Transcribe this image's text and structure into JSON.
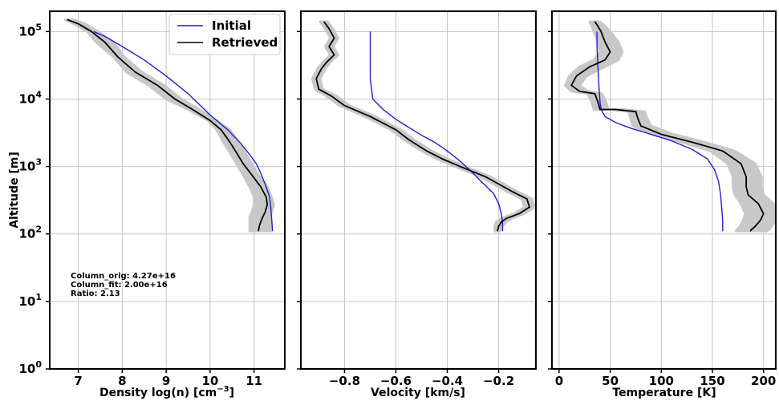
{
  "chart_data": [
    {
      "type": "line",
      "panel": "density",
      "xlabel": "Density log(n) [cm",
      "xlabel_sup": "−3",
      "xlabel_end": "]",
      "ylabel": "Altitude [m]",
      "xlim": [
        6.35,
        11.7
      ],
      "ylim": [
        1,
        200000
      ],
      "yscale": "log",
      "grid": true,
      "xticks": [
        7,
        8,
        9,
        10,
        11
      ],
      "xtick_labels": [
        "7",
        "8",
        "9",
        "10",
        "11"
      ],
      "ytick_exponents": [
        0,
        1,
        2,
        3,
        4,
        5
      ],
      "ytick_base": "10",
      "legend": {
        "placement": "top-right",
        "entries": [
          {
            "label": "Initial",
            "color": "#1f1fd6"
          },
          {
            "label": "Retrieved",
            "color": "#000000"
          }
        ]
      },
      "annotations": [
        "Column_orig: 4.27e+16",
        "Column_fit: 2.00e+16",
        "Ratio: 2.13"
      ],
      "series": [
        {
          "name": "Initial",
          "color": "#1f1fd6",
          "x": [
            7.35,
            7.6,
            8.0,
            8.5,
            9.0,
            9.5,
            10.0,
            10.4,
            10.7,
            10.9,
            11.05,
            11.15,
            11.25,
            11.35,
            11.38,
            11.4,
            11.42
          ],
          "y": [
            100000,
            85000,
            60000,
            38000,
            22000,
            12000,
            5800,
            3500,
            2200,
            1500,
            1100,
            800,
            550,
            360,
            250,
            170,
            110
          ]
        },
        {
          "name": "Retrieved",
          "color": "#000000",
          "x": [
            6.75,
            7.0,
            7.3,
            7.6,
            7.9,
            8.3,
            8.8,
            9.2,
            9.6,
            10.0,
            10.25,
            10.45,
            10.6,
            10.75,
            10.95,
            11.15,
            11.28,
            11.3,
            11.25,
            11.2,
            11.15,
            11.12,
            11.1
          ],
          "y": [
            150000,
            130000,
            100000,
            70000,
            42000,
            25000,
            16000,
            10000,
            7000,
            4800,
            3500,
            2300,
            1600,
            1100,
            750,
            500,
            350,
            270,
            210,
            180,
            150,
            130,
            110
          ]
        },
        {
          "name": "Retrieved-band",
          "color": "#c8c8c8",
          "x_lo": [
            6.7,
            6.9,
            7.2,
            7.4,
            7.8,
            8.1,
            8.6,
            9.0,
            9.5,
            9.95,
            10.15,
            10.3,
            10.45,
            10.6,
            10.75,
            10.9,
            11.0,
            11.0,
            10.95,
            10.9,
            10.9,
            10.9,
            10.9
          ],
          "x_hi": [
            6.9,
            7.15,
            7.45,
            7.8,
            8.05,
            8.45,
            8.95,
            9.35,
            9.75,
            10.15,
            10.45,
            10.65,
            10.8,
            10.95,
            11.1,
            11.3,
            11.4,
            11.45,
            11.4,
            11.38,
            11.38,
            11.38,
            11.38
          ]
        }
      ]
    },
    {
      "type": "line",
      "panel": "velocity",
      "xlabel": "Velocity [km/s]",
      "xlim": [
        -0.97,
        -0.055
      ],
      "ylim": [
        1,
        200000
      ],
      "yscale": "log",
      "grid": true,
      "xticks": [
        -0.8,
        -0.6,
        -0.4,
        -0.2
      ],
      "xtick_labels": [
        "−0.8",
        "−0.6",
        "−0.4",
        "−0.2"
      ],
      "series": [
        {
          "name": "Initial",
          "color": "#1f1fd6",
          "x": [
            -0.7,
            -0.7,
            -0.7,
            -0.69,
            -0.65,
            -0.6,
            -0.55,
            -0.5,
            -0.45,
            -0.4,
            -0.35,
            -0.3,
            -0.26,
            -0.22,
            -0.2,
            -0.19,
            -0.185,
            -0.185
          ],
          "y": [
            100000,
            50000,
            20000,
            10000,
            7000,
            5000,
            3800,
            2900,
            2300,
            1700,
            1200,
            800,
            560,
            400,
            280,
            200,
            150,
            110
          ]
        },
        {
          "name": "Retrieved",
          "color": "#000000",
          "x": [
            -0.88,
            -0.86,
            -0.84,
            -0.86,
            -0.84,
            -0.87,
            -0.89,
            -0.91,
            -0.9,
            -0.85,
            -0.8,
            -0.7,
            -0.6,
            -0.55,
            -0.48,
            -0.42,
            -0.35,
            -0.25,
            -0.15,
            -0.09,
            -0.08,
            -0.12,
            -0.17,
            -0.19,
            -0.2,
            -0.205
          ],
          "y": [
            140000,
            110000,
            80000,
            60000,
            45000,
            35000,
            28000,
            20000,
            14000,
            11000,
            8000,
            5500,
            3500,
            2500,
            1700,
            1300,
            1000,
            700,
            430,
            330,
            250,
            200,
            170,
            150,
            130,
            110
          ]
        },
        {
          "name": "Retrieved-band",
          "color": "#c8c8c8",
          "x_lo": [
            -0.895,
            -0.875,
            -0.855,
            -0.875,
            -0.855,
            -0.885,
            -0.905,
            -0.925,
            -0.915,
            -0.87,
            -0.82,
            -0.72,
            -0.62,
            -0.57,
            -0.5,
            -0.44,
            -0.37,
            -0.27,
            -0.17,
            -0.11,
            -0.1,
            -0.14,
            -0.19,
            -0.21,
            -0.215,
            -0.215
          ],
          "x_hi": [
            -0.865,
            -0.845,
            -0.825,
            -0.845,
            -0.825,
            -0.855,
            -0.875,
            -0.895,
            -0.885,
            -0.83,
            -0.78,
            -0.68,
            -0.58,
            -0.53,
            -0.46,
            -0.4,
            -0.33,
            -0.23,
            -0.13,
            -0.07,
            -0.06,
            -0.1,
            -0.15,
            -0.17,
            -0.185,
            -0.195
          ]
        }
      ]
    },
    {
      "type": "line",
      "panel": "temperature",
      "xlabel": "Temperature [K]",
      "xlim": [
        -7,
        212
      ],
      "ylim": [
        1,
        200000
      ],
      "yscale": "log",
      "grid": true,
      "xticks": [
        0,
        50,
        100,
        150,
        200
      ],
      "xtick_labels": [
        "0",
        "50",
        "100",
        "150",
        "200"
      ],
      "series": [
        {
          "name": "Initial",
          "color": "#1f1fd6",
          "x": [
            37,
            37,
            38,
            39,
            40,
            41,
            45,
            55,
            70,
            90,
            110,
            130,
            145,
            152,
            156,
            158,
            159,
            160,
            160
          ],
          "y": [
            100000,
            60000,
            30000,
            15000,
            9000,
            7000,
            5500,
            4500,
            3700,
            3000,
            2400,
            1800,
            1300,
            900,
            600,
            380,
            250,
            160,
            110
          ]
        },
        {
          "name": "Retrieved",
          "color": "#000000",
          "x": [
            35,
            38,
            41,
            45,
            50,
            45,
            30,
            17,
            12,
            20,
            35,
            38,
            40,
            55,
            75,
            77,
            80,
            100,
            130,
            160,
            178,
            183,
            183,
            185,
            195,
            200,
            197,
            192,
            188,
            187
          ],
          "y": [
            140000,
            120000,
            100000,
            70000,
            50000,
            38000,
            30000,
            22000,
            16000,
            13000,
            12000,
            9000,
            7000,
            7000,
            6500,
            5200,
            4000,
            3000,
            2300,
            1700,
            1100,
            700,
            500,
            380,
            280,
            200,
            160,
            130,
            115,
            110
          ]
        },
        {
          "name": "Retrieved-band",
          "color": "#c8c8c8",
          "x_lo": [
            30,
            32,
            34,
            38,
            40,
            34,
            20,
            10,
            6,
            12,
            28,
            32,
            34,
            48,
            68,
            70,
            72,
            90,
            120,
            148,
            165,
            170,
            170,
            172,
            178,
            182,
            180,
            177,
            174,
            173
          ],
          "x_hi": [
            40,
            45,
            50,
            58,
            62,
            58,
            45,
            27,
            20,
            28,
            42,
            46,
            48,
            62,
            84,
            86,
            90,
            112,
            142,
            172,
            192,
            198,
            198,
            200,
            210,
            212,
            212,
            208,
            205,
            203
          ]
        }
      ]
    }
  ]
}
